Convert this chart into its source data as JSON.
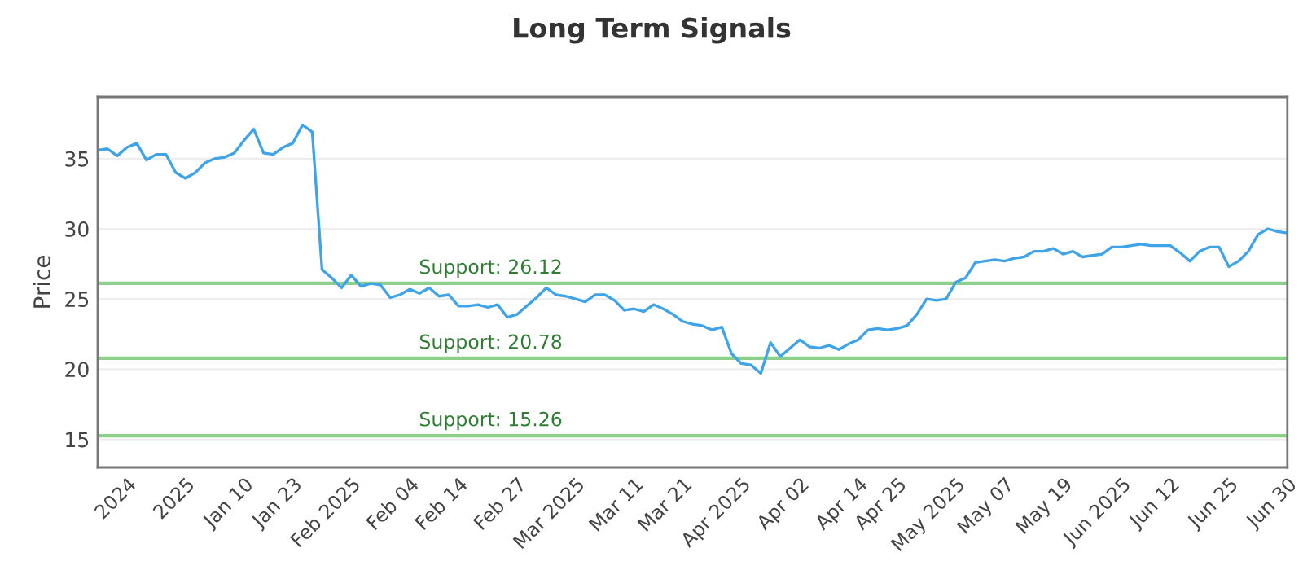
{
  "chart_data": {
    "type": "line",
    "title": "Long Term Signals",
    "ylabel": "Price",
    "ylim": [
      13.0,
      39.4
    ],
    "categories": [
      null,
      null,
      null,
      "2024",
      null,
      null,
      null,
      null,
      null,
      "2025",
      null,
      null,
      null,
      null,
      null,
      "Jan 10",
      null,
      null,
      null,
      null,
      "Jan 23",
      null,
      null,
      null,
      null,
      null,
      "Feb 2025",
      null,
      null,
      null,
      null,
      null,
      "Feb 04",
      null,
      null,
      null,
      null,
      "Feb 14",
      null,
      null,
      null,
      null,
      null,
      "Feb 27",
      null,
      null,
      null,
      null,
      null,
      "Mar 2025",
      null,
      null,
      null,
      null,
      null,
      "Mar 11",
      null,
      null,
      null,
      null,
      "Mar 21",
      null,
      null,
      null,
      null,
      null,
      "Apr 2025",
      null,
      null,
      null,
      null,
      null,
      "Apr 02",
      null,
      null,
      null,
      null,
      null,
      "Apr 14",
      null,
      null,
      null,
      "Apr 25",
      null,
      null,
      null,
      null,
      null,
      "May 2025",
      null,
      null,
      null,
      null,
      "May 07",
      null,
      null,
      null,
      null,
      null,
      "May 19",
      null,
      null,
      null,
      null,
      null,
      "Jun 2025",
      null,
      null,
      null,
      null,
      "Jun 12",
      null,
      null,
      null,
      null,
      null,
      "Jun 25",
      null,
      null,
      null,
      null,
      null,
      "Jun 30"
    ],
    "yticks": [
      15,
      20,
      25,
      30,
      35
    ],
    "grid": "y",
    "line_style": "solid",
    "ref_lines": [
      {
        "axis": "y",
        "value": 26.12,
        "label": "Support: 26.12",
        "color": "#8bcf8b"
      },
      {
        "axis": "y",
        "value": 20.78,
        "label": "Support: 20.78",
        "color": "#8bcf8b"
      },
      {
        "axis": "y",
        "value": 15.26,
        "label": "Support: 15.26",
        "color": "#8bcf8b"
      }
    ],
    "series": [
      {
        "color": "#3fa3e8",
        "values": [
          35.6,
          35.7,
          35.2,
          35.8,
          36.1,
          34.9,
          35.3,
          35.3,
          34.0,
          33.6,
          34.0,
          34.7,
          35.0,
          35.1,
          35.4,
          36.3,
          37.1,
          35.4,
          35.3,
          35.8,
          36.1,
          37.4,
          36.9,
          27.1,
          26.5,
          25.8,
          26.7,
          25.9,
          26.1,
          26.0,
          25.1,
          25.3,
          25.7,
          25.4,
          25.8,
          25.2,
          25.3,
          24.5,
          24.5,
          24.6,
          24.4,
          24.6,
          23.7,
          23.9,
          24.5,
          25.1,
          25.8,
          25.3,
          25.2,
          25.0,
          24.8,
          25.3,
          25.3,
          24.9,
          24.2,
          24.3,
          24.1,
          24.6,
          24.3,
          23.9,
          23.4,
          23.2,
          23.1,
          22.8,
          23.0,
          21.1,
          20.4,
          20.3,
          19.7,
          21.9,
          20.9,
          21.5,
          22.1,
          21.6,
          21.5,
          21.7,
          21.4,
          21.8,
          22.1,
          22.8,
          22.9,
          22.8,
          22.9,
          23.1,
          23.9,
          25.0,
          24.9,
          25.0,
          26.2,
          26.5,
          27.6,
          27.7,
          27.8,
          27.7,
          27.9,
          28.0,
          28.4,
          28.4,
          28.6,
          28.2,
          28.4,
          28.0,
          28.1,
          28.2,
          28.7,
          28.7,
          28.8,
          28.9,
          28.8,
          28.8,
          28.8,
          28.3,
          27.7,
          28.4,
          28.7,
          28.7,
          27.3,
          27.7,
          28.4,
          29.6,
          30.0,
          29.8,
          29.7
        ]
      }
    ]
  }
}
